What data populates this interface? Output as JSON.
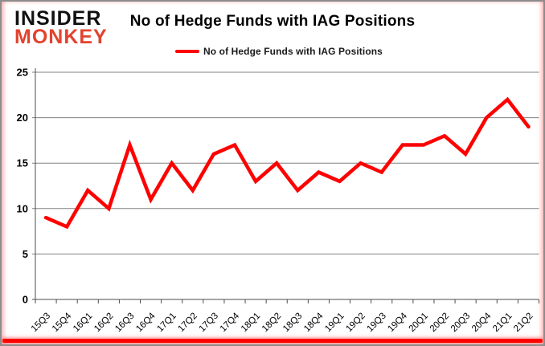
{
  "logo": {
    "line1": "INSIDER",
    "line2": "MONKEY"
  },
  "header": {
    "title": "No of Hedge Funds with IAG Positions"
  },
  "legend": {
    "label": "No of Hedge Funds with IAG Positions"
  },
  "chart_data": {
    "type": "line",
    "title": "No of Hedge Funds with IAG Positions",
    "categories": [
      "15Q3",
      "15Q4",
      "16Q1",
      "16Q2",
      "16Q3",
      "16Q4",
      "17Q1",
      "17Q2",
      "17Q3",
      "17Q4",
      "18Q1",
      "18Q2",
      "18Q3",
      "18Q4",
      "19Q1",
      "19Q2",
      "19Q3",
      "19Q4",
      "20Q1",
      "20Q2",
      "20Q3",
      "20Q4",
      "21Q1",
      "21Q2"
    ],
    "series": [
      {
        "name": "No of Hedge Funds with IAG Positions",
        "values": [
          9,
          8,
          12,
          10,
          17,
          11,
          15,
          12,
          16,
          17,
          13,
          15,
          12,
          14,
          13,
          15,
          14,
          17,
          17,
          18,
          16,
          20,
          22,
          19
        ]
      }
    ],
    "xlabel": "",
    "ylabel": "",
    "ylim": [
      0,
      25
    ],
    "ytick_step": 5,
    "grid": true,
    "legend_position": "top-center"
  },
  "colors": {
    "line": "#ff0000",
    "grid": "#808080",
    "axis": "#4d4d4d",
    "text": "#000000",
    "logo_red": "#e2432e",
    "accent_bar": "#ff0000",
    "frame_border": "#8c8c8c"
  }
}
